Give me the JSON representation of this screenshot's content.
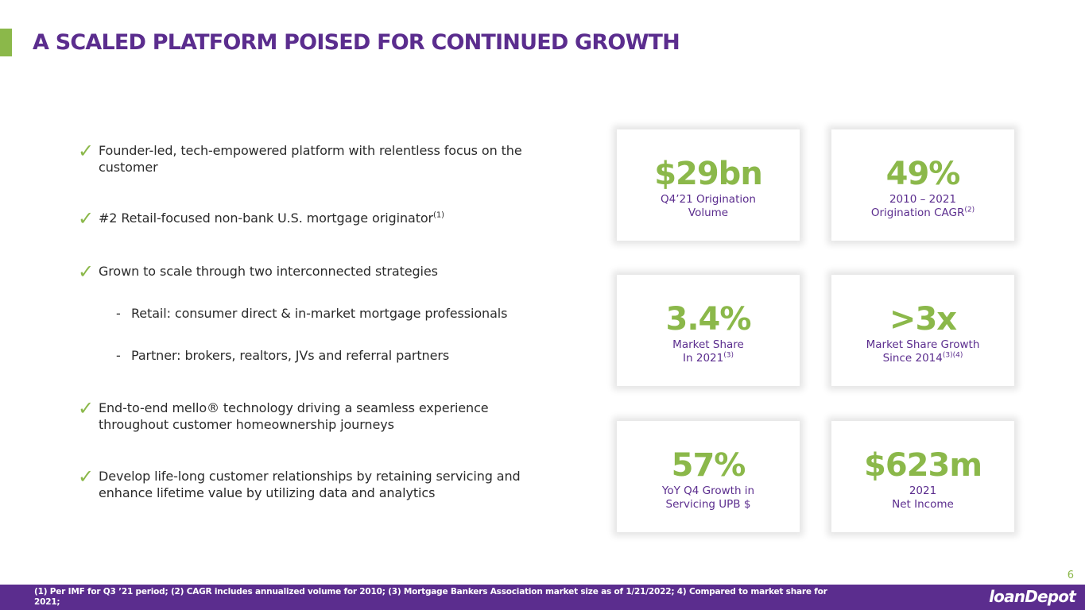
{
  "slide": {
    "title": "A SCALED PLATFORM POISED FOR CONTINUED GROWTH",
    "page_number": "6"
  },
  "bullets": [
    {
      "text": "Founder-led, tech-empowered platform with relentless focus on the customer",
      "sup": ""
    },
    {
      "text": "#2 Retail-focused non-bank U.S. mortgage originator",
      "sup": "(1)"
    },
    {
      "text": "Grown to scale through two interconnected strategies",
      "sup": ""
    },
    {
      "text": "End-to-end mello® technology driving a seamless experience throughout customer homeownership journeys",
      "sup": ""
    },
    {
      "text": "Develop life-long customer relationships by retaining servicing and enhance lifetime value by utilizing data and analytics",
      "sup": ""
    }
  ],
  "sub_bullets": [
    {
      "dash": "-",
      "text": "Retail: consumer direct & in-market mortgage professionals"
    },
    {
      "dash": "-",
      "text": "Partner: brokers, realtors, JVs and referral partners"
    }
  ],
  "check_glyph": "✓",
  "stats": [
    {
      "value": "$29bn",
      "line1": "Q4’21 Origination",
      "line2": "Volume",
      "sup": ""
    },
    {
      "value": "49%",
      "line1": "2010 – 2021",
      "line2": "Origination CAGR",
      "sup": "(2)"
    },
    {
      "value": "3.4%",
      "line1": "Market Share",
      "line2": "In 2021",
      "sup": "(3)"
    },
    {
      "value": ">3x",
      "line1": "Market Share Growth",
      "line2": "Since 2014",
      "sup": "(3)(4)"
    },
    {
      "value": "57%",
      "line1": "YoY Q4 Growth in",
      "line2": "Servicing UPB $",
      "sup": ""
    },
    {
      "value": "$623m",
      "line1": "2021",
      "line2": "Net Income",
      "sup": ""
    }
  ],
  "footer": {
    "footnote": "(1) Per IMF for Q3 ’21 period; (2) CAGR includes annualized volume for 2010; (3) Mortgage Bankers Association market size as of 1/21/2022; 4) Compared to market share for 2021;",
    "logo": "loanDepot"
  },
  "colors": {
    "purple": "#5b2d8e",
    "green": "#8bb84a"
  }
}
